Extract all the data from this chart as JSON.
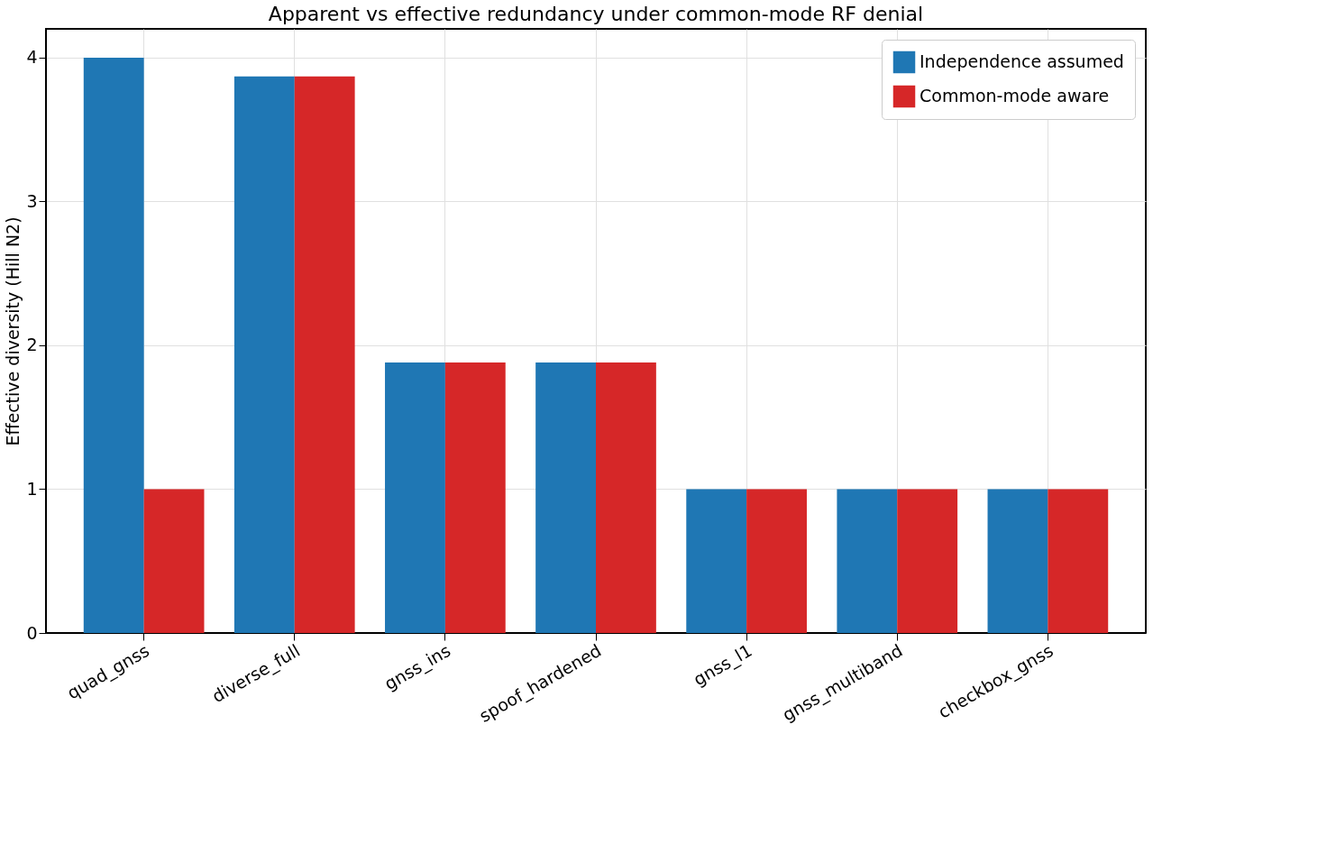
{
  "chart_data": {
    "type": "bar",
    "title": "Apparent vs effective redundancy under common-mode RF denial",
    "ylabel": "Effective diversity (Hill N2)",
    "categories": [
      "quad_gnss",
      "diverse_full",
      "gnss_ins",
      "spoof_hardened",
      "gnss_l1",
      "gnss_multiband",
      "checkbox_gnss"
    ],
    "series": [
      {
        "name": "Independence assumed",
        "color": "#1f77b4",
        "values": [
          4,
          3.87,
          1.88,
          1.88,
          1,
          1,
          1
        ]
      },
      {
        "name": "Common-mode aware",
        "color": "#d62728",
        "values": [
          1,
          3.87,
          1.88,
          1.88,
          1,
          1,
          1
        ]
      }
    ],
    "ylim": [
      0,
      4.2
    ],
    "yticks": [
      0,
      1,
      2,
      3,
      4
    ],
    "grid": true,
    "legend": "top right"
  }
}
